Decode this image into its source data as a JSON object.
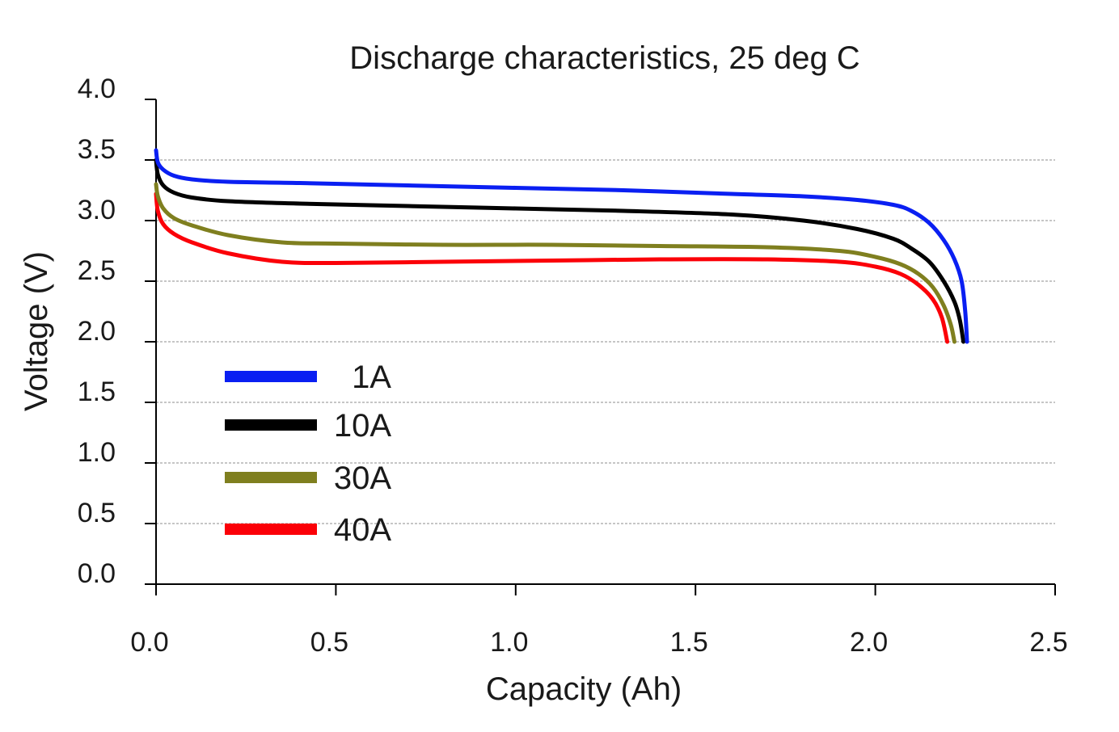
{
  "chart_data": {
    "type": "line",
    "title": "Discharge characteristics, 25 deg C",
    "xlabel": "Capacity (Ah)",
    "ylabel": "Voltage (V)",
    "xlim": [
      0,
      2.5
    ],
    "ylim": [
      0,
      4
    ],
    "x_ticks": [
      "0.0",
      "0.5",
      "1.0",
      "1.5",
      "2.0",
      "2.5"
    ],
    "y_ticks": [
      "0.0",
      "0.5",
      "1.0",
      "1.5",
      "2.0",
      "2.5",
      "3.0",
      "3.5",
      "4.0"
    ],
    "grid": "horizontal dotted",
    "legend_position": "left-middle",
    "series": [
      {
        "name": "1A",
        "color": "#0a1ff2",
        "x": [
          0.0,
          0.005,
          0.02,
          0.05,
          0.1,
          0.2,
          0.4,
          0.7,
          1.0,
          1.3,
          1.6,
          1.8,
          1.95,
          2.05,
          2.1,
          2.15,
          2.19,
          2.22,
          2.24,
          2.25,
          2.255
        ],
        "y": [
          3.58,
          3.48,
          3.42,
          3.37,
          3.34,
          3.32,
          3.31,
          3.29,
          3.27,
          3.25,
          3.22,
          3.2,
          3.17,
          3.13,
          3.08,
          2.98,
          2.84,
          2.68,
          2.5,
          2.25,
          2.0
        ]
      },
      {
        "name": "10A",
        "color": "#000000",
        "x": [
          0.0,
          0.005,
          0.02,
          0.05,
          0.1,
          0.2,
          0.4,
          0.7,
          1.0,
          1.3,
          1.6,
          1.8,
          1.95,
          2.05,
          2.1,
          2.15,
          2.19,
          2.22,
          2.235,
          2.245
        ],
        "y": [
          3.5,
          3.38,
          3.29,
          3.23,
          3.19,
          3.16,
          3.14,
          3.12,
          3.1,
          3.08,
          3.05,
          3.0,
          2.93,
          2.85,
          2.77,
          2.66,
          2.5,
          2.33,
          2.18,
          2.0
        ]
      },
      {
        "name": "30A",
        "color": "#7f7f1f",
        "x": [
          0.0,
          0.005,
          0.02,
          0.05,
          0.1,
          0.2,
          0.35,
          0.5,
          0.8,
          1.1,
          1.4,
          1.7,
          1.9,
          2.0,
          2.07,
          2.12,
          2.16,
          2.19,
          2.21,
          2.22
        ],
        "y": [
          3.3,
          3.2,
          3.1,
          3.02,
          2.96,
          2.88,
          2.82,
          2.81,
          2.8,
          2.8,
          2.79,
          2.78,
          2.75,
          2.7,
          2.64,
          2.56,
          2.45,
          2.3,
          2.14,
          2.0
        ]
      },
      {
        "name": "40A",
        "color": "#fb0008",
        "x": [
          0.0,
          0.005,
          0.02,
          0.05,
          0.1,
          0.2,
          0.35,
          0.5,
          0.8,
          1.1,
          1.4,
          1.7,
          1.9,
          2.0,
          2.07,
          2.12,
          2.16,
          2.185,
          2.2
        ],
        "y": [
          3.22,
          3.08,
          2.97,
          2.89,
          2.82,
          2.73,
          2.66,
          2.65,
          2.66,
          2.67,
          2.68,
          2.68,
          2.66,
          2.62,
          2.56,
          2.47,
          2.35,
          2.2,
          2.0
        ]
      }
    ]
  }
}
